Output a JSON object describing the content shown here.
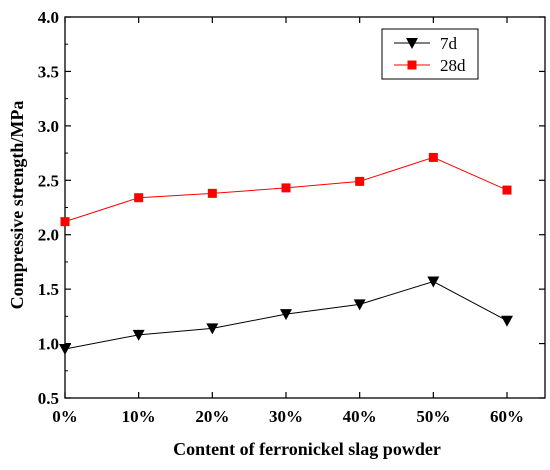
{
  "chart_data": {
    "type": "line",
    "title": "",
    "xlabel": "Content of ferronickel slag powder",
    "ylabel": "Compressive strength/MPa",
    "categories": [
      "0%",
      "10%",
      "20%",
      "30%",
      "40%",
      "50%",
      "60%"
    ],
    "x": [
      0,
      10,
      20,
      30,
      40,
      50,
      60
    ],
    "xlim": [
      0,
      60
    ],
    "ylim": [
      0.5,
      4.0
    ],
    "xticks": [
      "0%",
      "10%",
      "20%",
      "30%",
      "40%",
      "50%",
      "60%"
    ],
    "yticks": [
      "0.5",
      "1.0",
      "1.5",
      "2.0",
      "2.5",
      "3.0",
      "3.5",
      "4.0"
    ],
    "grid": false,
    "legend_position": "top-right",
    "series": [
      {
        "name": "7d",
        "color": "#000000",
        "marker": "triangle-down",
        "values": [
          0.95,
          1.08,
          1.14,
          1.27,
          1.36,
          1.57,
          1.21
        ]
      },
      {
        "name": "28d",
        "color": "#ff0000",
        "marker": "square",
        "values": [
          2.12,
          2.34,
          2.38,
          2.43,
          2.49,
          2.71,
          2.41
        ]
      }
    ]
  }
}
